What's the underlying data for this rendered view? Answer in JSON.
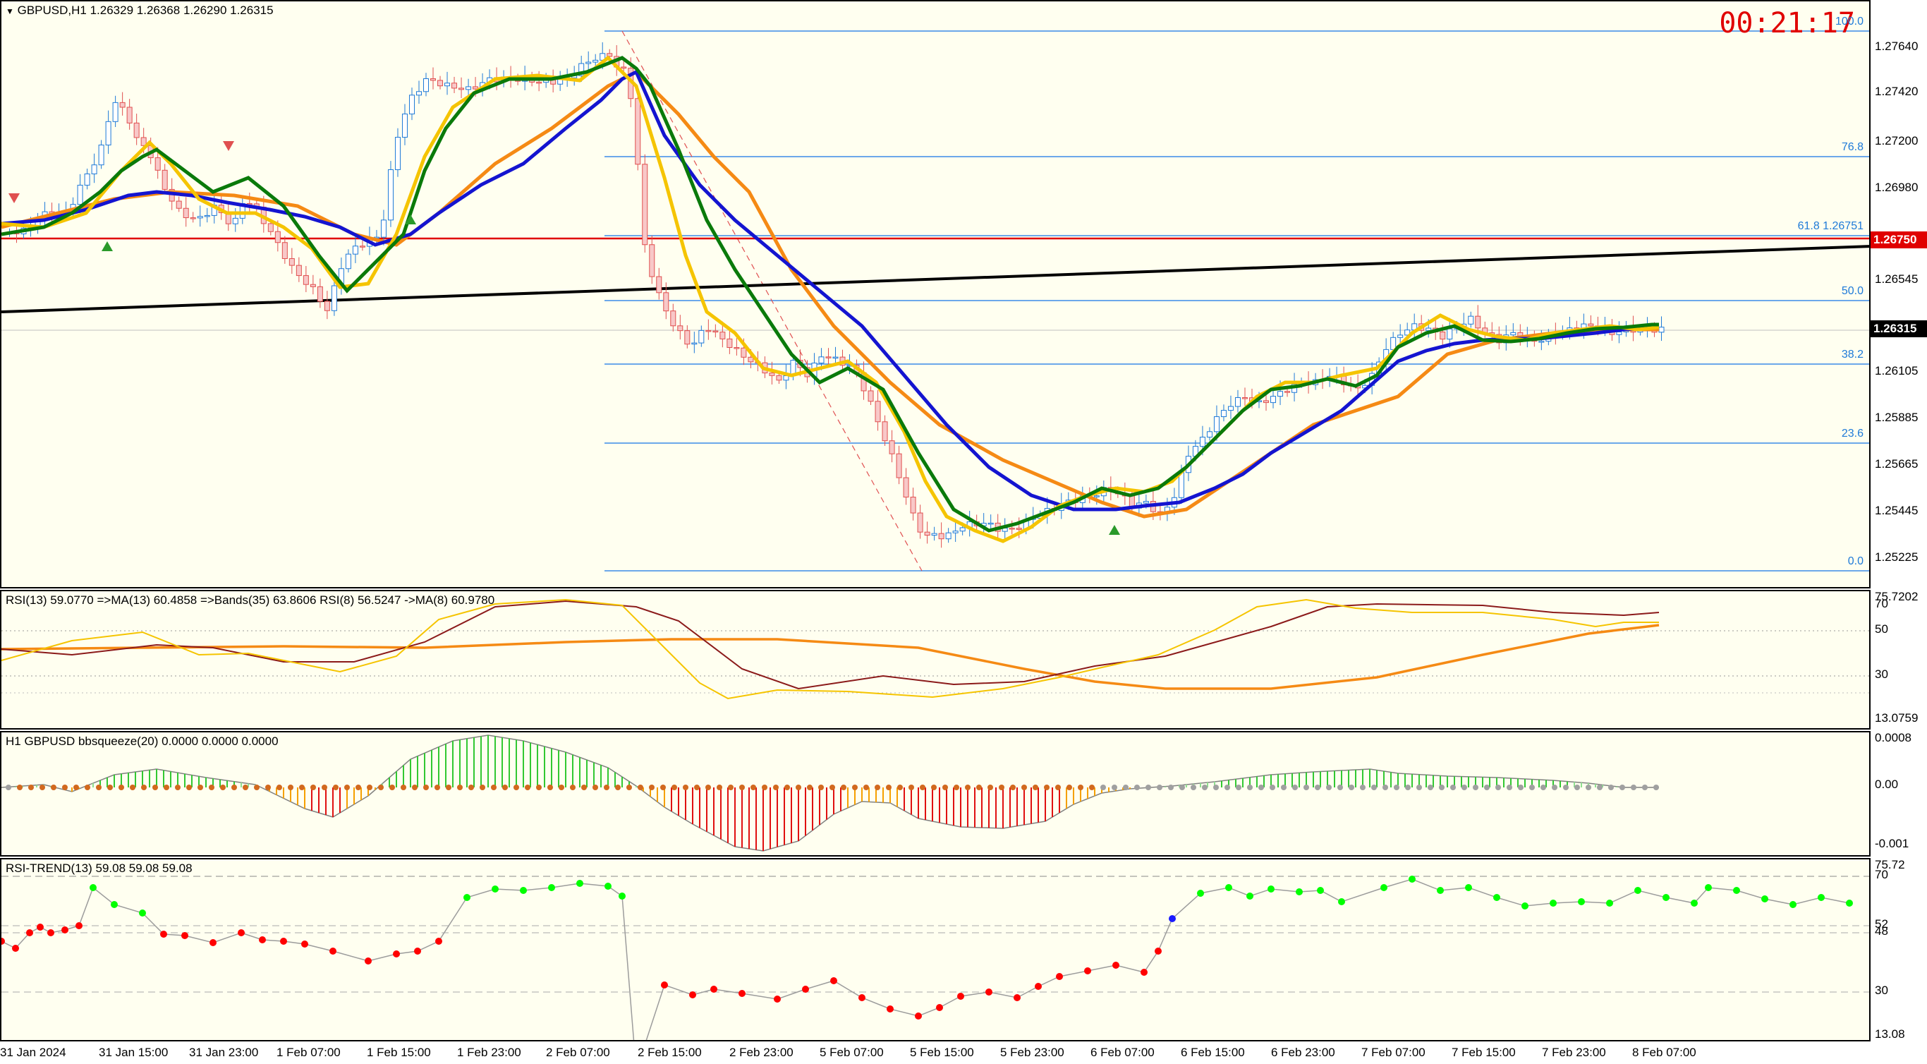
{
  "main_chart": {
    "symbol_line": "GBPUSD,H1  1.26329 1.26368 1.26290 1.26315",
    "timer": "00:21:17",
    "current_price": "1.26315",
    "line_price": "1.26750",
    "price_scale": [
      "1.27640",
      "1.27420",
      "1.27200",
      "1.26980",
      "1.26750",
      "1.26545",
      "1.26315",
      "1.26105",
      "1.25885",
      "1.25665",
      "1.25445",
      "1.25225"
    ],
    "fib_levels": [
      {
        "label": "100.0"
      },
      {
        "label": "76.8"
      },
      {
        "label": "61.8  1.26751"
      },
      {
        "label": "50.0"
      },
      {
        "label": "38.2"
      },
      {
        "label": "23.6"
      },
      {
        "label": "0.0"
      }
    ],
    "colors": {
      "bull": "#1e7ad8",
      "bear": "#e05050",
      "green_ma": "#0a7a0a",
      "blue_ma": "#1414d0",
      "yellow_ma": "#f5c400",
      "orange_ma": "#f58a14",
      "red_line": "#e00000"
    }
  },
  "rsi_panel": {
    "label": "RSI(13) 59.0770  =>MA(13) 60.4858  =>Bands(35) 63.8606  RSI(8) 56.5247  ->MA(8) 60.9780",
    "scale": [
      "75.7202",
      "70",
      "50",
      "30",
      "13.0759"
    ]
  },
  "squeeze_panel": {
    "label": "H1 GBPUSD bbsqueeze(20) 0.0000 0.0000 0.0000",
    "scale": [
      "0.0008",
      "0.00",
      "-0.001"
    ]
  },
  "rsi_trend_panel": {
    "label": "RSI-TREND(13) 59.08 59.08 59.08",
    "scale": [
      "75.72",
      "70",
      "52",
      "48",
      "30",
      "13.08"
    ]
  },
  "time_axis": [
    "31 Jan 2024",
    "31 Jan 15:00",
    "31 Jan 23:00",
    "1 Feb 07:00",
    "1 Feb 15:00",
    "1 Feb 23:00",
    "2 Feb 07:00",
    "2 Feb 15:00",
    "2 Feb 23:00",
    "5 Feb 07:00",
    "5 Feb 15:00",
    "5 Feb 23:00",
    "6 Feb 07:00",
    "6 Feb 15:00",
    "6 Feb 23:00",
    "7 Feb 07:00",
    "7 Feb 15:00",
    "7 Feb 23:00",
    "8 Feb 07:00"
  ]
}
